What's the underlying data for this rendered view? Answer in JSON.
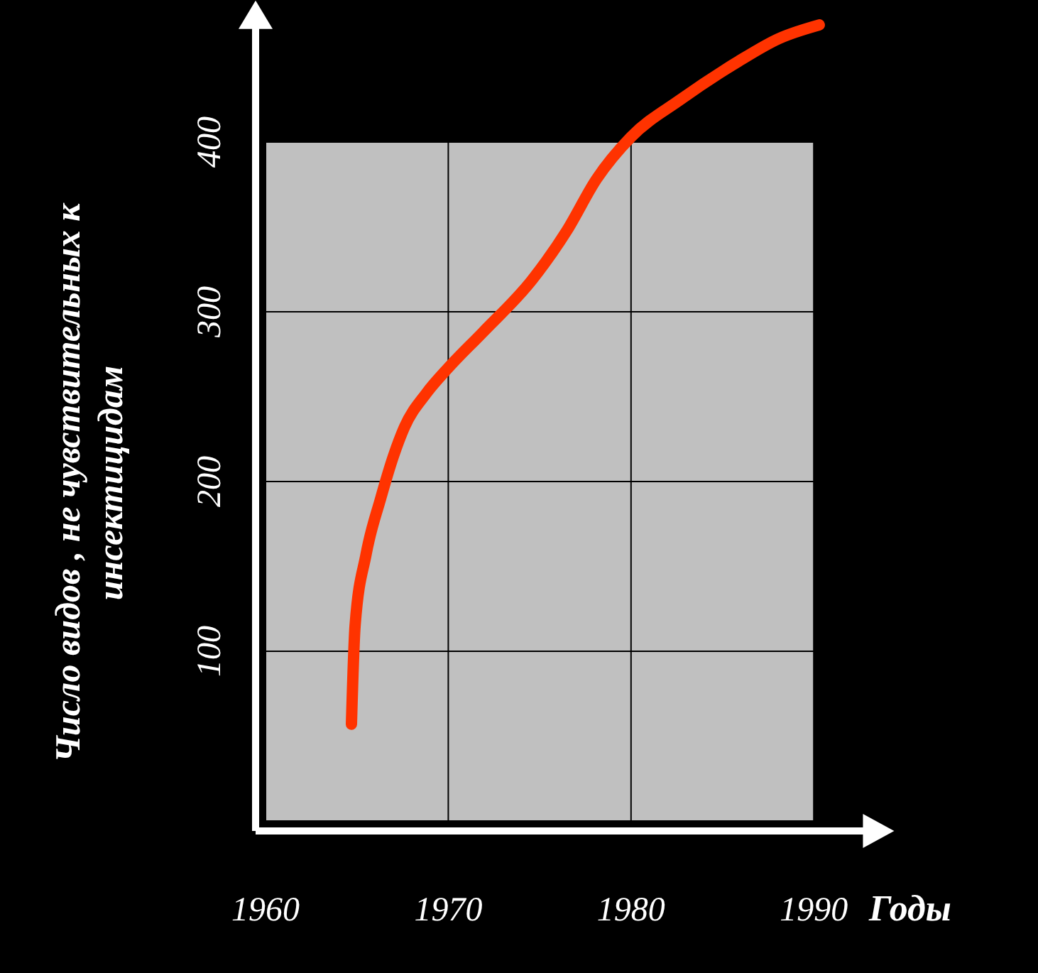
{
  "chart_data": {
    "type": "line",
    "xlabel": "Годы",
    "ylabel": "Число видов , не чувствительных к инсектицидам",
    "xlim": [
      1960,
      1993
    ],
    "ylim": [
      0,
      475
    ],
    "xticks": [
      1960,
      1970,
      1980,
      1990
    ],
    "yticks": [
      {
        "value": 0,
        "label": null
      },
      100,
      200,
      300,
      400
    ],
    "grid": true,
    "bands": [
      {
        "axis": "x",
        "from": 1960,
        "to": 1990,
        "color": "#c0c0c0"
      }
    ],
    "marker": "none",
    "line_style": "solid",
    "series": [
      {
        "color": "#ff3300",
        "x": [
          1964.7,
          1964.9,
          1965.5,
          1966.3,
          1967.0,
          1967.6,
          1968.8,
          1970,
          1971.9,
          1974.6,
          1976.5,
          1978.1,
          1980,
          1982.7,
          1985.8,
          1988.1,
          1990.3
        ],
        "values": [
          57,
          115,
          157,
          190,
          215,
          232,
          252,
          267,
          288,
          319,
          348,
          378,
          403,
          425,
          447,
          461,
          469
        ]
      }
    ]
  }
}
